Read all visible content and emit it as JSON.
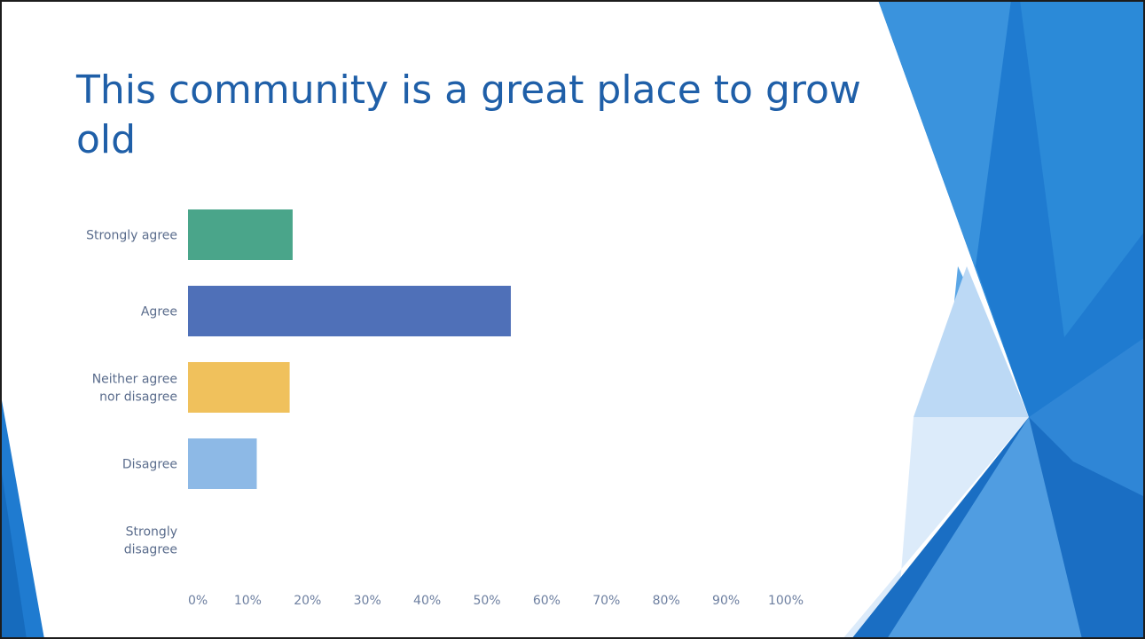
{
  "slide": {
    "title": "This community is a great place to grow old"
  },
  "colors": {
    "title": "#1f5fa8",
    "label": "#5a6c8c",
    "tick": "#6d7fa0",
    "accent_blue": "#1f7bd0"
  },
  "chart_data": {
    "type": "bar",
    "orientation": "horizontal",
    "title": "",
    "xlabel": "",
    "ylabel": "",
    "categories": [
      "Strongly agree",
      "Agree",
      "Neither agree nor disagree",
      "Disagree",
      "Strongly disagree"
    ],
    "category_lines": [
      [
        "Strongly agree"
      ],
      [
        "Agree"
      ],
      [
        "Neither agree",
        "nor disagree"
      ],
      [
        "Disagree"
      ],
      [
        "Strongly",
        "disagree"
      ]
    ],
    "values": [
      17.5,
      54,
      17,
      11.5,
      0
    ],
    "bar_colors": [
      "#4aa58a",
      "#4f70b8",
      "#f0c15c",
      "#8db9e6",
      "#cccccc"
    ],
    "xlim": [
      0,
      100
    ],
    "x_ticks": [
      "0%",
      "10%",
      "20%",
      "30%",
      "40%",
      "50%",
      "60%",
      "70%",
      "80%",
      "90%",
      "100%"
    ],
    "grid": false,
    "legend": "none"
  }
}
